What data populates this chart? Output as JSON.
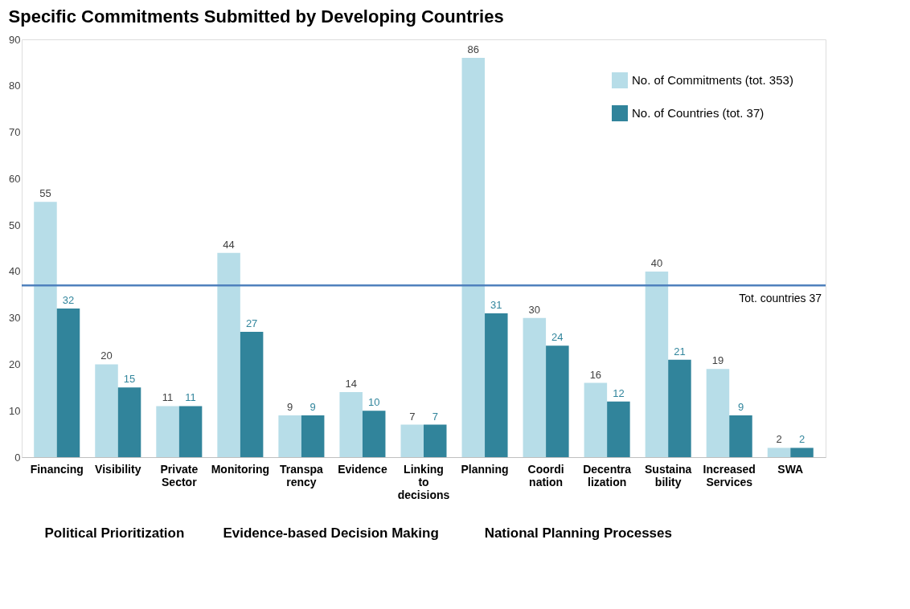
{
  "chart_data": {
    "type": "bar",
    "title": "Specific Commitments Submitted by Developing Countries",
    "categories": [
      "Financing",
      "Visibility",
      "Private Sector",
      "Monitoring",
      "Transpa rency",
      "Evidence",
      "Linking to decisions",
      "Planning",
      "Coordi nation",
      "Decentra lization",
      "Sustaina bility",
      "Increased Services",
      "SWA"
    ],
    "series": [
      {
        "name": "No. of Commitments (tot. 353)",
        "color": "#b7dde8",
        "values": [
          55,
          20,
          11,
          44,
          9,
          14,
          7,
          86,
          30,
          16,
          40,
          19,
          2
        ]
      },
      {
        "name": "No. of Countries (tot. 37)",
        "color": "#31849b",
        "values": [
          32,
          15,
          11,
          27,
          9,
          10,
          7,
          31,
          24,
          12,
          21,
          9,
          2
        ]
      }
    ],
    "ylim": [
      0,
      90
    ],
    "yticks": [
      0,
      10,
      20,
      30,
      40,
      50,
      60,
      70,
      80,
      90
    ],
    "grid": false,
    "legend": "top right",
    "data_labels": true,
    "ref_lines": [
      {
        "axis": "y",
        "value": 37,
        "label": "Tot. countries 37",
        "color": "#4f81bd"
      }
    ],
    "annotations": [
      "Political Prioritization",
      "Evidence-based Decision Making",
      "National Planning Processes"
    ]
  }
}
